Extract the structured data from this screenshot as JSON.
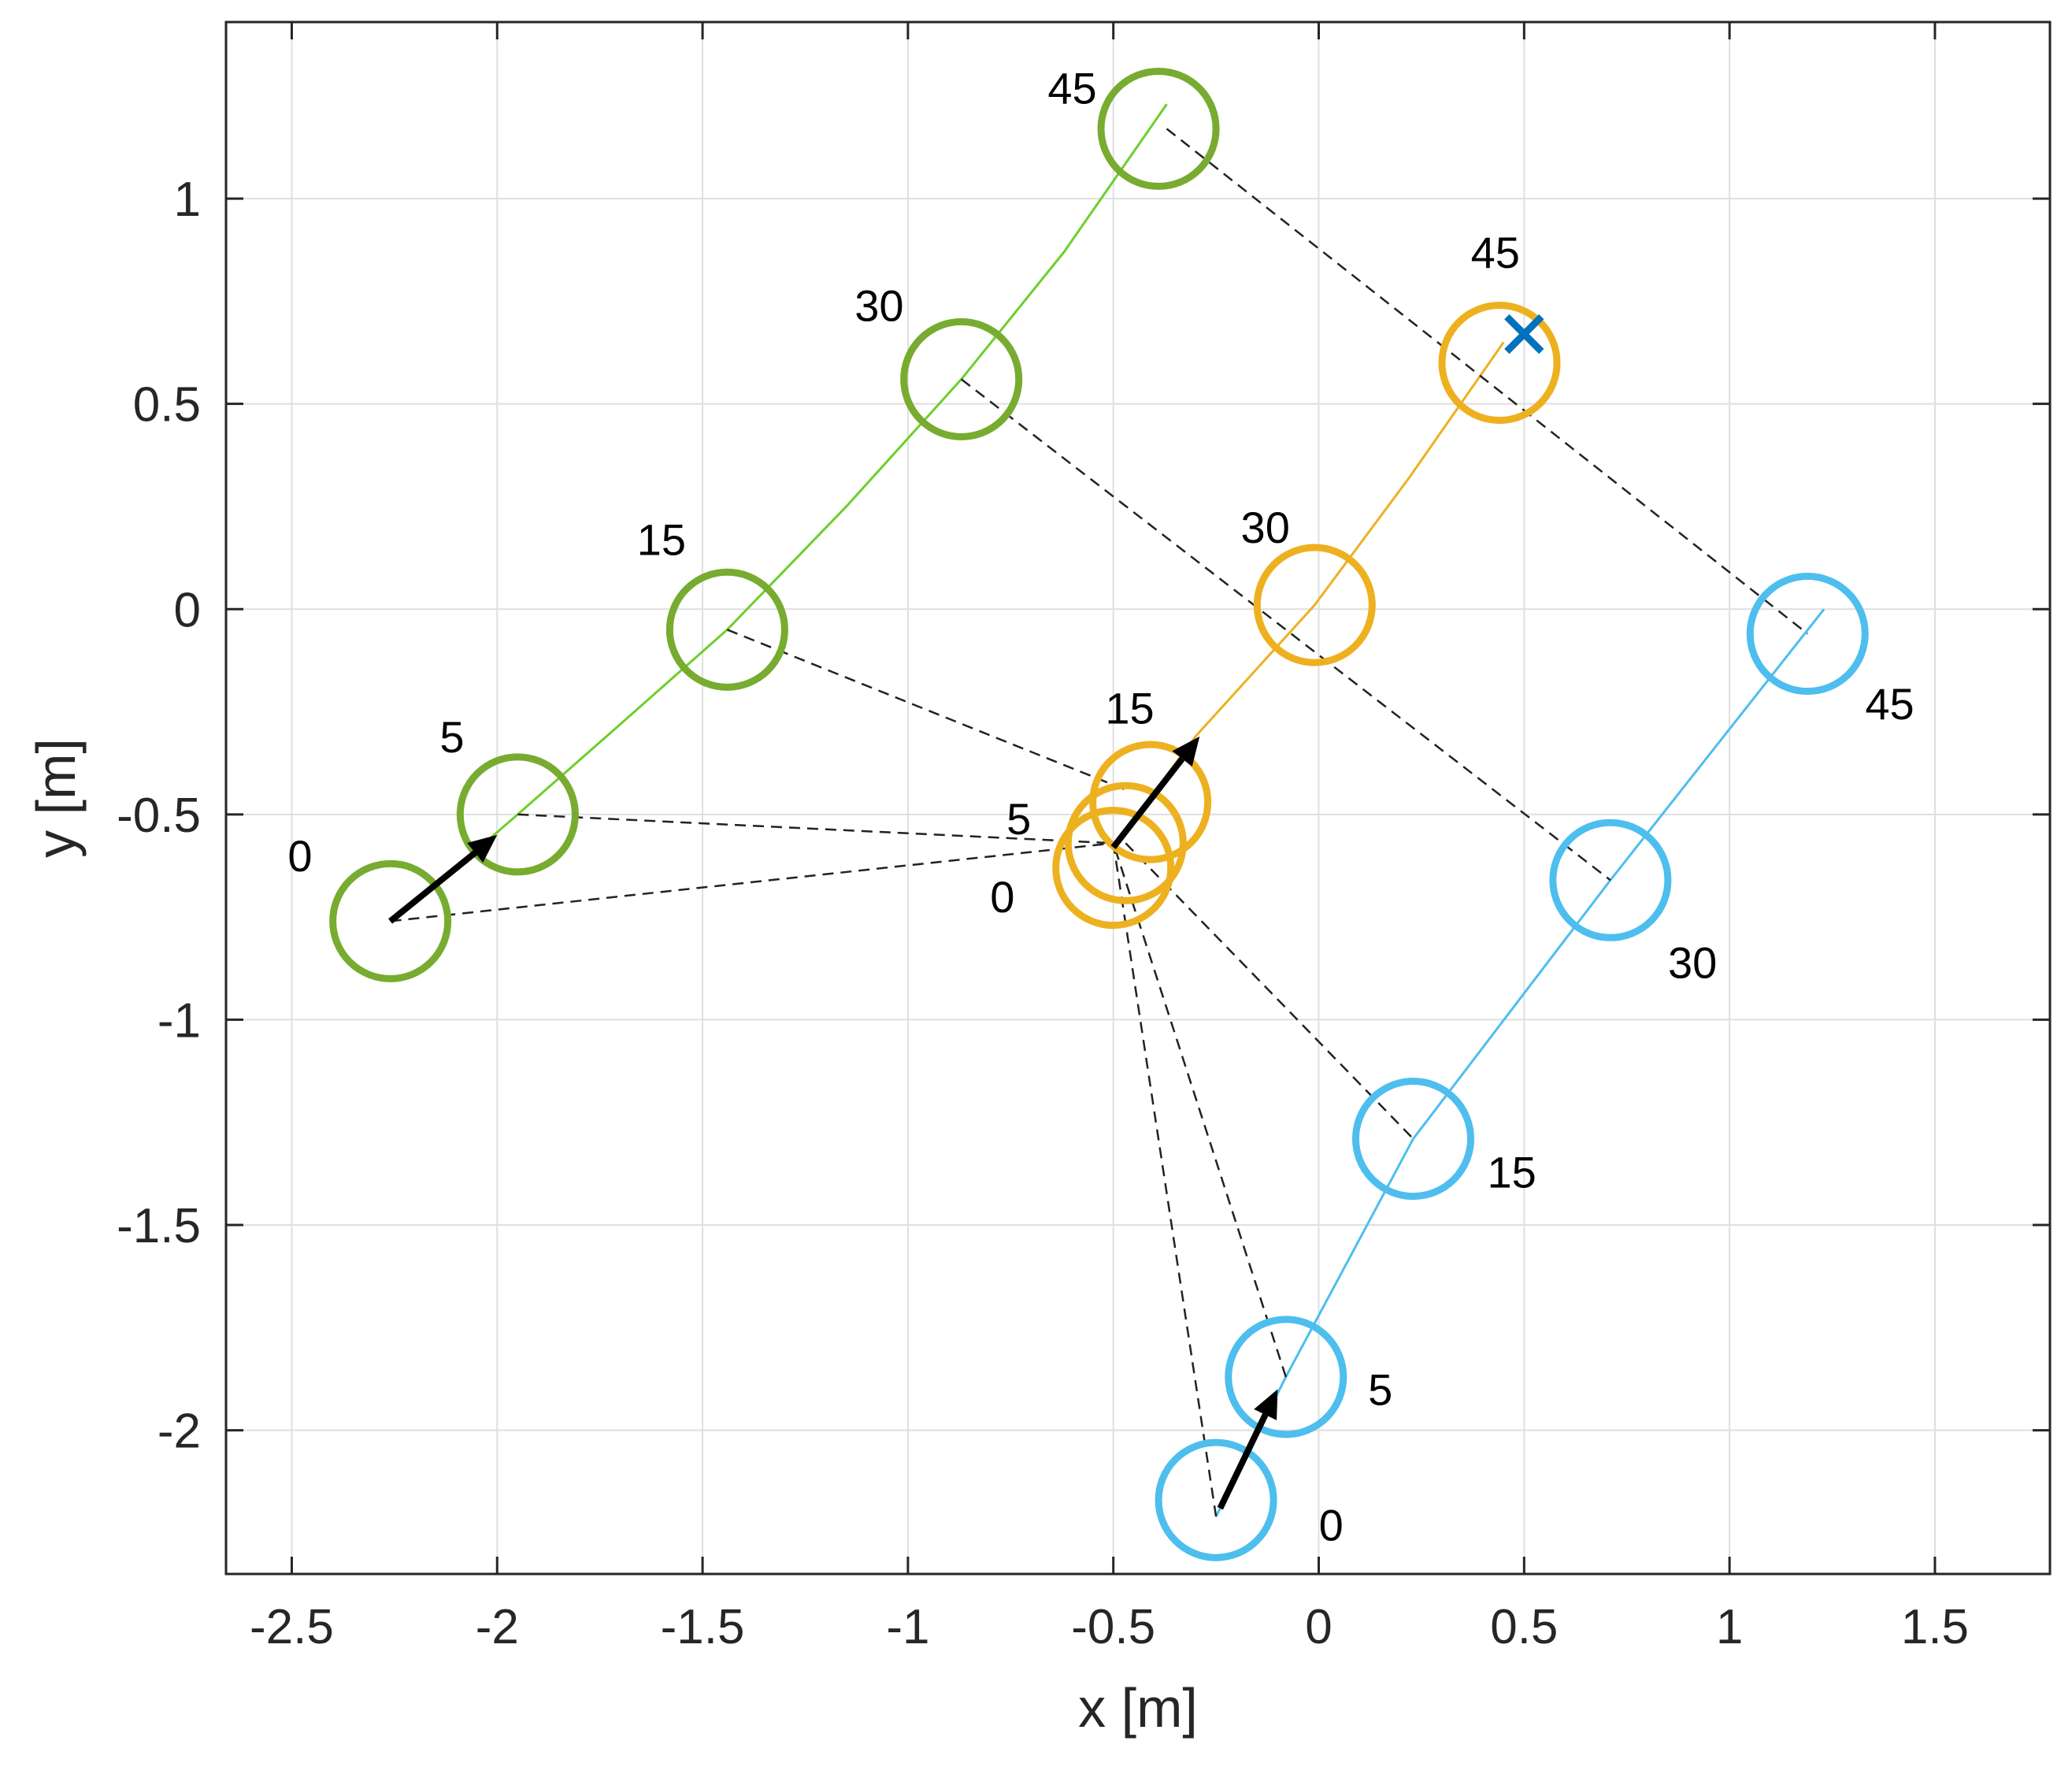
{
  "chart_data": {
    "type": "line",
    "title": "",
    "xlabel": "x [m]",
    "ylabel": "y [m]",
    "xlim": [
      -2.66,
      1.78
    ],
    "ylim": [
      -2.35,
      1.43
    ],
    "grid": true,
    "xticks": [
      -2.5,
      -2,
      -1.5,
      -1,
      -0.5,
      0,
      0.5,
      1,
      1.5
    ],
    "xtick_labels": [
      "-2.5",
      "-2",
      "-1.5",
      "-1",
      "-0.5",
      "0",
      "0.5",
      "1",
      "1.5"
    ],
    "yticks": [
      1,
      0.5,
      0,
      -0.5,
      -1,
      -1.5,
      -2
    ],
    "ytick_labels": [
      "1",
      "0.5",
      "0",
      "-0.5",
      "-1",
      "-1.5",
      "-2"
    ],
    "robot_radius": 0.14,
    "series": [
      {
        "name": "green",
        "color": "#77ac30",
        "path_color": "#6ecf2a",
        "path": [
          [
            -2.26,
            -0.76
          ],
          [
            -2.1,
            -0.63
          ],
          [
            -1.95,
            -0.5
          ],
          [
            -1.7,
            -0.28
          ],
          [
            -1.44,
            -0.05
          ],
          [
            -1.15,
            0.25
          ],
          [
            -0.87,
            0.56
          ],
          [
            -0.62,
            0.87
          ],
          [
            -0.37,
            1.23
          ]
        ],
        "waypoints": [
          {
            "t": "0",
            "x": -2.26,
            "y": -0.76,
            "label_x": -2.48,
            "label_y": -0.6
          },
          {
            "t": "5",
            "x": -1.95,
            "y": -0.5,
            "label_x": -2.11,
            "label_y": -0.31
          },
          {
            "t": "15",
            "x": -1.44,
            "y": -0.05,
            "label_x": -1.6,
            "label_y": 0.17
          },
          {
            "t": "30",
            "x": -0.87,
            "y": 0.56,
            "label_x": -1.07,
            "label_y": 0.74
          },
          {
            "t": "45",
            "x": -0.39,
            "y": 1.17,
            "label_x": -0.6,
            "label_y": 1.27
          }
        ]
      },
      {
        "name": "orange",
        "color": "#edb120",
        "path_color": "#edb120",
        "path": [
          [
            -0.5,
            -0.58
          ],
          [
            -0.3,
            -0.31
          ],
          [
            -0.01,
            0.01
          ],
          [
            0.22,
            0.32
          ],
          [
            0.45,
            0.65
          ]
        ],
        "waypoints": [
          {
            "t": "0",
            "x": -0.5,
            "y": -0.63,
            "label_x": -0.77,
            "label_y": -0.7
          },
          {
            "t": "5",
            "x": -0.47,
            "y": -0.57,
            "label_x": -0.73,
            "label_y": -0.51
          },
          {
            "t": "15",
            "x": -0.41,
            "y": -0.47,
            "label_x": -0.46,
            "label_y": -0.24
          },
          {
            "t": "30",
            "x": -0.01,
            "y": 0.01,
            "label_x": -0.13,
            "label_y": 0.2
          },
          {
            "t": "45",
            "x": 0.44,
            "y": 0.6,
            "label_x": 0.43,
            "label_y": 0.87
          }
        ]
      },
      {
        "name": "blue",
        "color": "#4dbeee",
        "path_color": "#4dbeee",
        "path": [
          [
            -0.25,
            -2.21
          ],
          [
            -0.08,
            -1.87
          ],
          [
            0.23,
            -1.29
          ],
          [
            0.71,
            -0.66
          ],
          [
            1.23,
            0.0
          ]
        ],
        "waypoints": [
          {
            "t": "0",
            "x": -0.25,
            "y": -2.17,
            "label_x": 0.03,
            "label_y": -2.23
          },
          {
            "t": "5",
            "x": -0.08,
            "y": -1.87,
            "label_x": 0.15,
            "label_y": -1.9
          },
          {
            "t": "15",
            "x": 0.23,
            "y": -1.29,
            "label_x": 0.47,
            "label_y": -1.37
          },
          {
            "t": "30",
            "x": 0.71,
            "y": -0.66,
            "label_x": 0.91,
            "label_y": -0.86
          },
          {
            "t": "45",
            "x": 1.19,
            "y": -0.06,
            "label_x": 1.39,
            "label_y": -0.23
          }
        ]
      }
    ],
    "connectors": [
      [
        [
          -2.26,
          -0.76
        ],
        [
          -0.5,
          -0.57
        ]
      ],
      [
        [
          -1.95,
          -0.5
        ],
        [
          -0.5,
          -0.57
        ]
      ],
      [
        [
          -0.25,
          -2.21
        ],
        [
          -0.5,
          -0.57
        ]
      ],
      [
        [
          -0.08,
          -1.87
        ],
        [
          -0.5,
          -0.57
        ]
      ],
      [
        [
          -1.44,
          -0.05
        ],
        [
          -0.47,
          -0.44
        ]
      ],
      [
        [
          -0.47,
          -0.57
        ],
        [
          0.23,
          -1.29
        ]
      ],
      [
        [
          -0.87,
          0.56
        ],
        [
          0.71,
          -0.66
        ]
      ],
      [
        [
          -0.37,
          1.17
        ],
        [
          1.19,
          -0.06
        ]
      ]
    ],
    "arrows": [
      {
        "from": [
          -2.26,
          -0.76
        ],
        "to": [
          -2.0,
          -0.55
        ]
      },
      {
        "from": [
          -0.5,
          -0.58
        ],
        "to": [
          -0.29,
          -0.31
        ]
      },
      {
        "from": [
          -0.24,
          -2.19
        ],
        "to": [
          -0.1,
          -1.9
        ]
      }
    ],
    "goal_marker": {
      "x": 0.5,
      "y": 0.67,
      "color": "#0072bd"
    }
  }
}
